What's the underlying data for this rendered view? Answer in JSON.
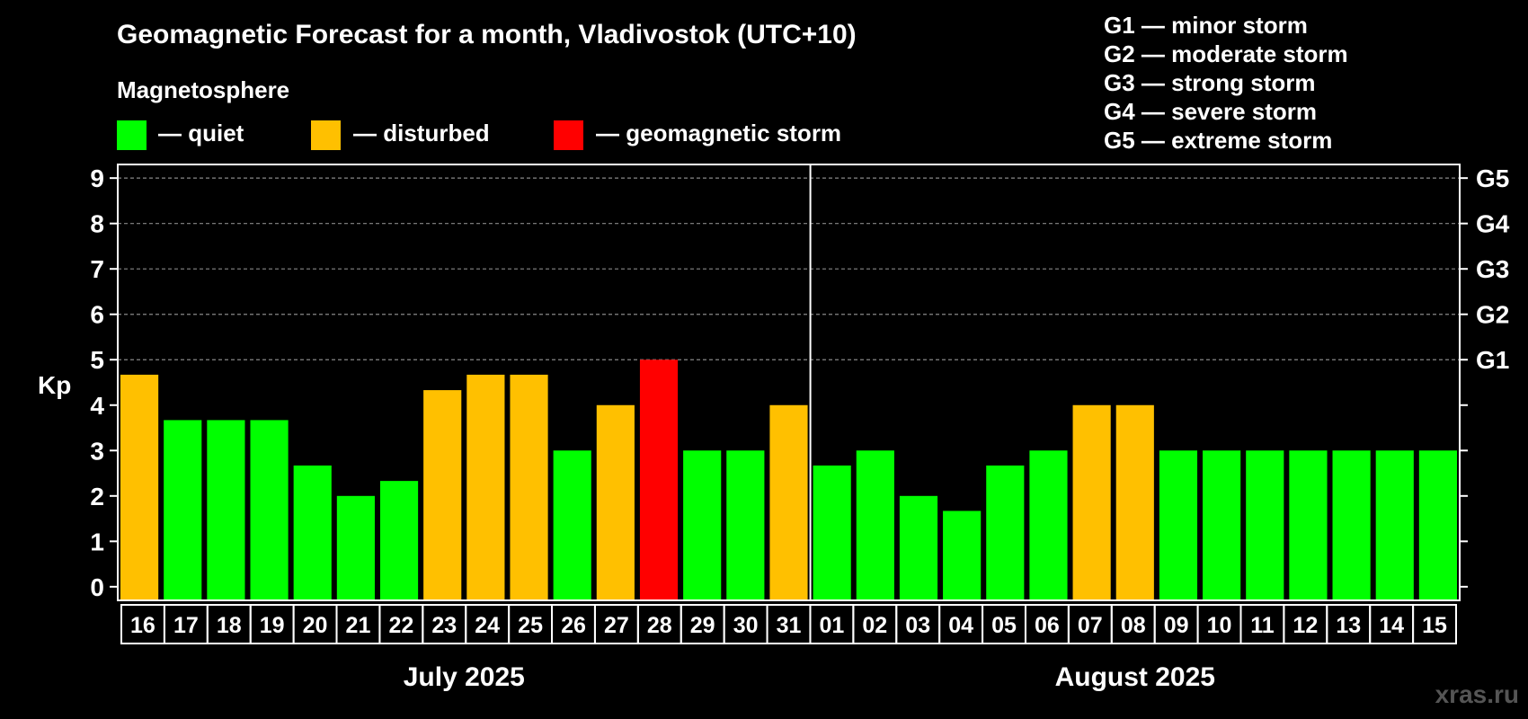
{
  "title": "Geomagnetic Forecast for a month, Vladivostok (UTC+10)",
  "legend": {
    "heading": "Magnetosphere",
    "items": [
      {
        "label": "— quiet",
        "color": "#00FF00"
      },
      {
        "label": "— disturbed",
        "color": "#FFC000"
      },
      {
        "label": "— geomagnetic storm",
        "color": "#FF0000"
      }
    ]
  },
  "storm_scale": [
    "G1 — minor storm",
    "G2 — moderate storm",
    "G3 — strong storm",
    "G4 — severe storm",
    "G5 — extreme storm"
  ],
  "watermark": "xras.ru",
  "colors": {
    "quiet": "#00FF00",
    "disturbed": "#FFC000",
    "storm": "#FF0000",
    "background": "#000000",
    "axis": "#FFFFFF",
    "grid": "#888888"
  },
  "chart_data": {
    "type": "bar",
    "title": "Geomagnetic Forecast for a month, Vladivostok (UTC+10)",
    "ylabel": "Kp",
    "ylim": [
      -0.3,
      9.3
    ],
    "yticks": [
      0,
      1,
      2,
      3,
      4,
      5,
      6,
      7,
      8,
      9
    ],
    "right_labels": [
      {
        "value": 5,
        "label": "G1"
      },
      {
        "value": 6,
        "label": "G2"
      },
      {
        "value": 7,
        "label": "G3"
      },
      {
        "value": 8,
        "label": "G4"
      },
      {
        "value": 9,
        "label": "G5"
      }
    ],
    "right_minor_ticks": [
      0,
      1,
      2,
      3,
      4
    ],
    "grid_values": [
      5,
      6,
      7,
      8,
      9
    ],
    "categories": [
      "16",
      "17",
      "18",
      "19",
      "20",
      "21",
      "22",
      "23",
      "24",
      "25",
      "26",
      "27",
      "28",
      "29",
      "30",
      "31",
      "01",
      "02",
      "03",
      "04",
      "05",
      "06",
      "07",
      "08",
      "09",
      "10",
      "11",
      "12",
      "13",
      "14",
      "15"
    ],
    "values": [
      4.67,
      3.67,
      3.67,
      3.67,
      2.67,
      2.0,
      2.33,
      4.33,
      4.67,
      4.67,
      3.0,
      4.0,
      5.0,
      3.0,
      3.0,
      4.0,
      2.67,
      3.0,
      2.0,
      1.67,
      2.67,
      3.0,
      4.0,
      4.0,
      3.0,
      3.0,
      3.0,
      3.0,
      3.0,
      3.0,
      3.0
    ],
    "levels": [
      "disturbed",
      "quiet",
      "quiet",
      "quiet",
      "quiet",
      "quiet",
      "quiet",
      "disturbed",
      "disturbed",
      "disturbed",
      "quiet",
      "disturbed",
      "storm",
      "quiet",
      "quiet",
      "disturbed",
      "quiet",
      "quiet",
      "quiet",
      "quiet",
      "quiet",
      "quiet",
      "disturbed",
      "disturbed",
      "quiet",
      "quiet",
      "quiet",
      "quiet",
      "quiet",
      "quiet",
      "quiet"
    ],
    "months": [
      {
        "label": "July 2025",
        "count": 16
      },
      {
        "label": "August 2025",
        "count": 15
      }
    ]
  }
}
